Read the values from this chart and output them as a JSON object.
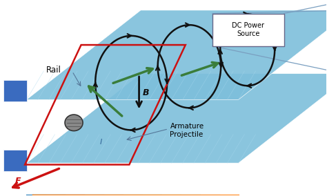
{
  "bg_color": "#ffffff",
  "rail_color": "#7dbfdb",
  "blue_block_color": "#3a6bbf",
  "green_color": "#3a7d3a",
  "red_color": "#cc1111",
  "black_color": "#111111",
  "gray_color": "#888888",
  "dc_border": "#7a9fc0",
  "fig_width": 4.74,
  "fig_height": 2.84,
  "dpi": 100,
  "labels": {
    "rail": "Rail",
    "B": "B",
    "F": "F",
    "I": "I",
    "armature": "Armature\nProjectile",
    "dc": "DC Power\nSource"
  }
}
